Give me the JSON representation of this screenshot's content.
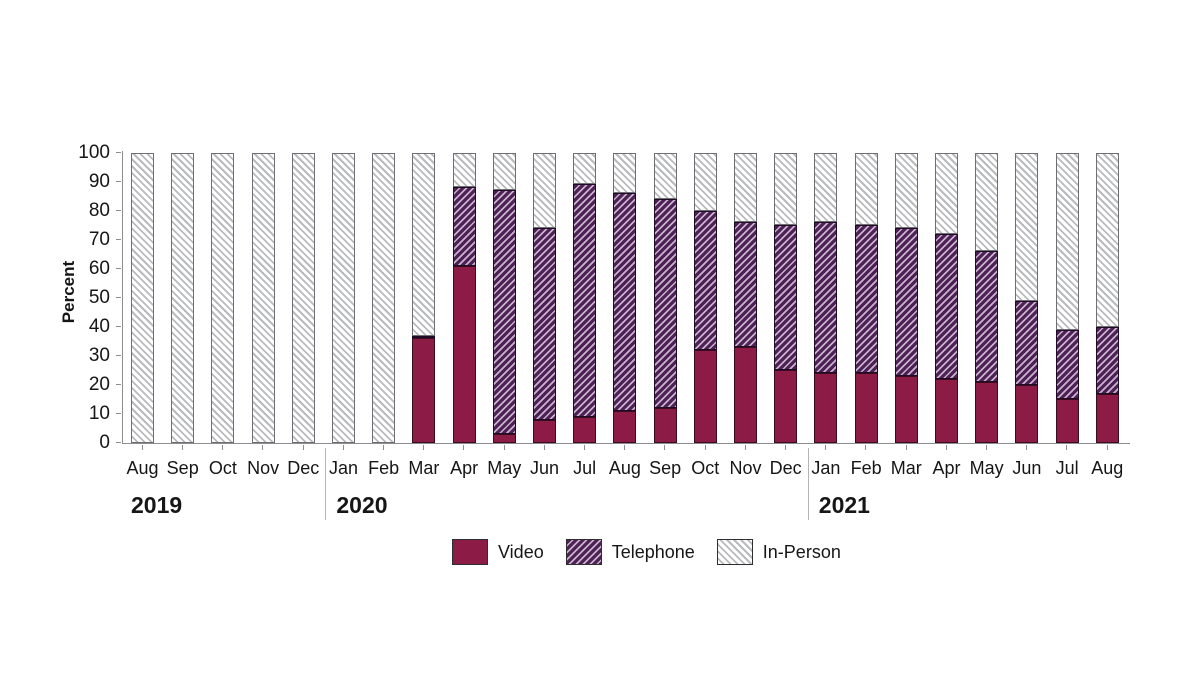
{
  "chart_data": {
    "type": "bar",
    "stacked": true,
    "unit": "percent",
    "title": "",
    "xlabel": "",
    "ylabel": "Percent",
    "ylim": [
      0,
      100
    ],
    "yticks": [
      0,
      10,
      20,
      30,
      40,
      50,
      60,
      70,
      80,
      90,
      100
    ],
    "grid": false,
    "legend_position": "bottom",
    "x_groups": [
      {
        "year": "2019",
        "months": [
          "Aug",
          "Sep",
          "Oct",
          "Nov",
          "Dec"
        ]
      },
      {
        "year": "2020",
        "months": [
          "Jan",
          "Feb",
          "Mar",
          "Apr",
          "May",
          "Jun",
          "Jul",
          "Aug",
          "Sep",
          "Oct",
          "Nov",
          "Dec"
        ]
      },
      {
        "year": "2021",
        "months": [
          "Jan",
          "Feb",
          "Mar",
          "Apr",
          "May",
          "Jun",
          "Jul",
          "Aug"
        ]
      }
    ],
    "series": [
      {
        "name": "Video",
        "pattern": "solid",
        "color": "#8c1b46",
        "values": [
          0,
          0,
          0,
          0,
          0,
          0,
          0,
          36,
          61,
          3,
          8,
          9,
          11,
          12,
          32,
          33,
          25,
          24,
          24,
          23,
          22,
          21,
          20,
          15,
          17
        ]
      },
      {
        "name": "Telephone",
        "pattern": "diagonal-hatch-forward",
        "color": "#4e2156",
        "hatch_color": "#c7b2cb",
        "values": [
          0,
          0,
          0,
          0,
          0,
          0,
          0,
          1,
          27,
          84,
          66,
          80,
          75,
          72,
          48,
          43,
          50,
          52,
          51,
          51,
          50,
          45,
          29,
          24,
          23
        ]
      },
      {
        "name": "In-Person",
        "pattern": "diagonal-hatch-back",
        "color": "#ffffff",
        "hatch_color": "#b9babe",
        "values": [
          100,
          100,
          100,
          100,
          100,
          100,
          100,
          63,
          12,
          13,
          26,
          11,
          14,
          16,
          20,
          24,
          25,
          24,
          25,
          26,
          28,
          34,
          51,
          61,
          60
        ]
      }
    ]
  }
}
